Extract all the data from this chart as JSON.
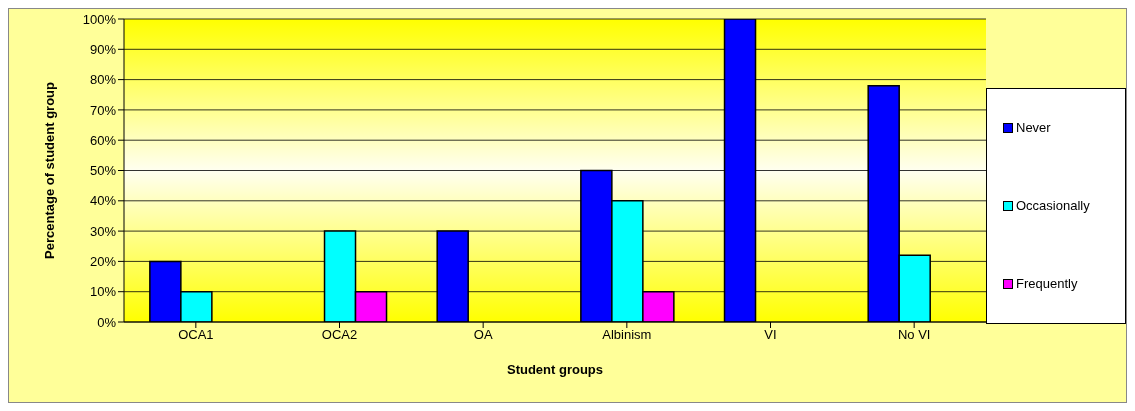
{
  "chart_data": {
    "type": "bar",
    "xlabel": "Student groups",
    "ylabel": "Percentage of student group",
    "categories": [
      "OCA1",
      "OCA2",
      "OA",
      "Albinism",
      "VI",
      "No VI"
    ],
    "series": [
      {
        "name": "Never",
        "color": "#0000ff",
        "values": [
          20,
          0,
          30,
          50,
          100,
          78
        ]
      },
      {
        "name": "Occasionally",
        "color": "#00ffff",
        "values": [
          10,
          30,
          0,
          40,
          0,
          22
        ]
      },
      {
        "name": "Frequently",
        "color": "#ff00ff",
        "values": [
          0,
          10,
          0,
          10,
          0,
          0
        ]
      }
    ],
    "ylim": [
      0,
      100
    ],
    "yticks": [
      {
        "value": 0,
        "label": "0%"
      },
      {
        "value": 10,
        "label": "10%"
      },
      {
        "value": 20,
        "label": "20%"
      },
      {
        "value": 30,
        "label": "30%"
      },
      {
        "value": 40,
        "label": "40%"
      },
      {
        "value": 50,
        "label": "50%"
      },
      {
        "value": 60,
        "label": "60%"
      },
      {
        "value": 70,
        "label": "70%"
      },
      {
        "value": 80,
        "label": "80%"
      },
      {
        "value": 90,
        "label": "90%"
      },
      {
        "value": 100,
        "label": "100%"
      }
    ],
    "grid": "y",
    "legend": "right"
  }
}
